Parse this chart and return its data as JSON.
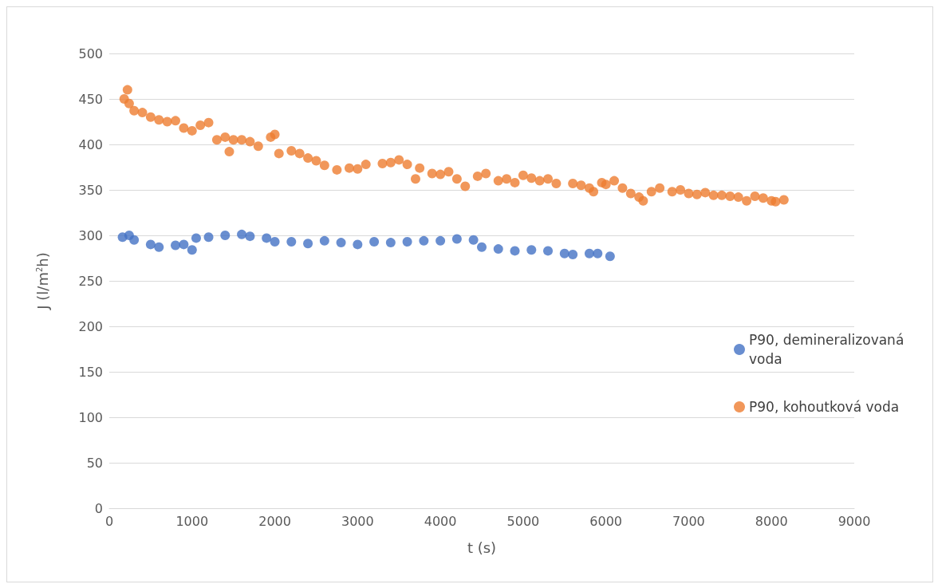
{
  "chart_data": {
    "type": "scatter",
    "xlabel": "t (s)",
    "ylabel": "J (l/m$^{2}$h)",
    "xlim": [
      0,
      9000
    ],
    "xticks": [
      0,
      1000,
      2000,
      3000,
      4000,
      5000,
      6000,
      7000,
      8000,
      9000
    ],
    "ylim": [
      0,
      500
    ],
    "yticks": [
      0,
      50,
      100,
      150,
      200,
      250,
      300,
      350,
      400,
      450,
      500
    ],
    "grid": "y",
    "legend": "right",
    "marker": "circle",
    "series": [
      {
        "name": "P90, demineralizovaná voda",
        "color": "#4472c4",
        "x": [
          160,
          240,
          300,
          500,
          600,
          800,
          900,
          1000,
          1050,
          1200,
          1400,
          1600,
          1700,
          1900,
          2000,
          2200,
          2400,
          2600,
          2800,
          3000,
          3200,
          3400,
          3600,
          3800,
          4000,
          4200,
          4400,
          4500,
          4700,
          4900,
          5100,
          5300,
          5500,
          5600,
          5800,
          5900,
          6050
        ],
        "values": [
          298,
          300,
          295,
          290,
          287,
          289,
          290,
          284,
          297,
          298,
          300,
          301,
          299,
          297,
          293,
          293,
          291,
          294,
          292,
          290,
          293,
          292,
          293,
          294,
          294,
          296,
          295,
          287,
          285,
          283,
          284,
          283,
          280,
          279,
          280,
          280,
          277
        ]
      },
      {
        "name": "P90, kohoutková voda",
        "color": "#ed7d31",
        "x": [
          180,
          220,
          240,
          300,
          400,
          500,
          600,
          700,
          800,
          900,
          1000,
          1100,
          1200,
          1300,
          1400,
          1450,
          1500,
          1600,
          1700,
          1800,
          1950,
          2000,
          2050,
          2200,
          2300,
          2400,
          2500,
          2600,
          2750,
          2900,
          3000,
          3100,
          3300,
          3400,
          3500,
          3600,
          3700,
          3750,
          3900,
          4000,
          4100,
          4200,
          4300,
          4450,
          4550,
          4700,
          4800,
          4900,
          5000,
          5100,
          5200,
          5300,
          5400,
          5600,
          5700,
          5800,
          5850,
          5950,
          6000,
          6100,
          6200,
          6300,
          6400,
          6450,
          6550,
          6650,
          6800,
          6900,
          7000,
          7100,
          7200,
          7300,
          7400,
          7500,
          7600,
          7700,
          7800,
          7900,
          8000,
          8050,
          8150
        ],
        "values": [
          450,
          460,
          445,
          437,
          435,
          430,
          427,
          425,
          426,
          418,
          415,
          421,
          424,
          405,
          408,
          392,
          405,
          405,
          403,
          398,
          408,
          411,
          390,
          393,
          390,
          385,
          382,
          377,
          372,
          374,
          373,
          378,
          379,
          380,
          383,
          378,
          362,
          374,
          368,
          367,
          370,
          362,
          354,
          365,
          368,
          360,
          362,
          358,
          366,
          363,
          360,
          362,
          357,
          357,
          355,
          352,
          348,
          358,
          356,
          360,
          352,
          346,
          342,
          338,
          348,
          352,
          348,
          350,
          346,
          345,
          347,
          344,
          344,
          343,
          342,
          338,
          343,
          341,
          338,
          337,
          339
        ]
      }
    ]
  }
}
